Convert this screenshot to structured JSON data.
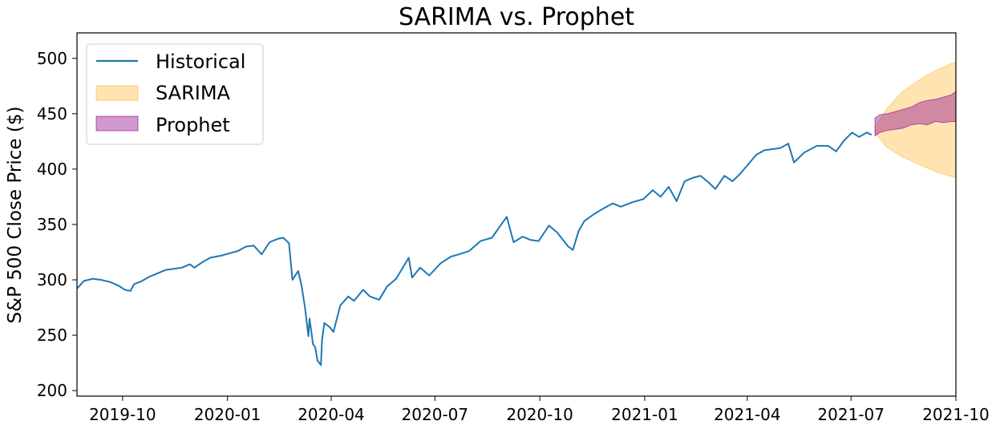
{
  "chart_data": {
    "type": "line",
    "title": "SARIMA vs. Prophet",
    "xlabel": "",
    "ylabel": "S&P 500 Close Price ($)",
    "xlim": [
      "2019-08-22",
      "2021-10-01"
    ],
    "ylim": [
      195,
      523
    ],
    "x_ticks": [
      "2019-10",
      "2020-01",
      "2020-04",
      "2020-07",
      "2020-10",
      "2021-01",
      "2021-04",
      "2021-07",
      "2021-10"
    ],
    "y_ticks": [
      200,
      250,
      300,
      350,
      400,
      450,
      500
    ],
    "grid": false,
    "legend": {
      "position": "top-left",
      "entries": [
        "Historical",
        "SARIMA",
        "Prophet"
      ]
    },
    "colors": {
      "historical": "#1f77b4",
      "sarima": "#ffa500",
      "prophet": "#8b008b"
    },
    "series": [
      {
        "name": "Historical",
        "type": "line",
        "x": [
          "2019-08-22",
          "2019-08-28",
          "2019-09-05",
          "2019-09-12",
          "2019-09-20",
          "2019-09-27",
          "2019-10-03",
          "2019-10-08",
          "2019-10-11",
          "2019-10-18",
          "2019-10-25",
          "2019-11-01",
          "2019-11-08",
          "2019-11-15",
          "2019-11-22",
          "2019-11-29",
          "2019-12-03",
          "2019-12-10",
          "2019-12-17",
          "2019-12-27",
          "2020-01-03",
          "2020-01-10",
          "2020-01-17",
          "2020-01-24",
          "2020-01-31",
          "2020-02-07",
          "2020-02-14",
          "2020-02-19",
          "2020-02-24",
          "2020-02-27",
          "2020-03-03",
          "2020-03-06",
          "2020-03-09",
          "2020-03-12",
          "2020-03-13",
          "2020-03-16",
          "2020-03-18",
          "2020-03-20",
          "2020-03-23",
          "2020-03-24",
          "2020-03-26",
          "2020-03-31",
          "2020-04-03",
          "2020-04-09",
          "2020-04-16",
          "2020-04-21",
          "2020-04-29",
          "2020-05-05",
          "2020-05-13",
          "2020-05-20",
          "2020-05-28",
          "2020-06-08",
          "2020-06-11",
          "2020-06-18",
          "2020-06-26",
          "2020-07-06",
          "2020-07-15",
          "2020-07-22",
          "2020-07-31",
          "2020-08-10",
          "2020-08-20",
          "2020-09-02",
          "2020-09-08",
          "2020-09-16",
          "2020-09-23",
          "2020-09-30",
          "2020-10-09",
          "2020-10-16",
          "2020-10-26",
          "2020-10-30",
          "2020-11-04",
          "2020-11-09",
          "2020-11-17",
          "2020-11-25",
          "2020-12-04",
          "2020-12-11",
          "2020-12-21",
          "2020-12-31",
          "2021-01-08",
          "2021-01-15",
          "2021-01-22",
          "2021-01-29",
          "2021-02-05",
          "2021-02-12",
          "2021-02-19",
          "2021-02-26",
          "2021-03-04",
          "2021-03-12",
          "2021-03-19",
          "2021-03-26",
          "2021-04-09",
          "2021-04-16",
          "2021-04-23",
          "2021-04-30",
          "2021-05-07",
          "2021-05-12",
          "2021-05-21",
          "2021-06-01",
          "2021-06-11",
          "2021-06-18",
          "2021-06-25",
          "2021-07-02",
          "2021-07-08",
          "2021-07-15",
          "2021-07-19"
        ],
        "values": [
          292,
          299,
          301,
          300,
          298,
          295,
          291,
          290,
          296,
          299,
          303,
          306,
          309,
          310,
          311,
          314,
          311,
          316,
          320,
          322,
          324,
          326,
          330,
          331,
          323,
          334,
          337,
          338,
          333,
          300,
          308,
          295,
          275,
          249,
          265,
          242,
          239,
          227,
          223,
          246,
          261,
          257,
          253,
          277,
          285,
          281,
          291,
          285,
          282,
          294,
          301,
          320,
          302,
          311,
          304,
          315,
          321,
          323,
          326,
          335,
          338,
          357,
          334,
          339,
          336,
          335,
          349,
          343,
          330,
          327,
          344,
          353,
          359,
          364,
          369,
          366,
          370,
          373,
          381,
          375,
          384,
          371,
          389,
          392,
          394,
          388,
          382,
          394,
          389,
          396,
          413,
          417,
          418,
          419,
          423,
          406,
          415,
          421,
          421,
          416,
          426,
          433,
          429,
          433,
          431
        ]
      },
      {
        "name": "SARIMA",
        "type": "band",
        "x": [
          "2021-07-22",
          "2021-08-01",
          "2021-08-15",
          "2021-09-01",
          "2021-09-15",
          "2021-10-01"
        ],
        "lower": [
          433,
          420,
          411,
          403,
          397,
          392
        ],
        "upper": [
          438,
          454,
          470,
          482,
          490,
          497
        ]
      },
      {
        "name": "Prophet",
        "type": "band",
        "x": [
          "2021-07-22",
          "2021-07-26",
          "2021-08-02",
          "2021-08-09",
          "2021-08-16",
          "2021-08-23",
          "2021-08-30",
          "2021-09-06",
          "2021-09-13",
          "2021-09-20",
          "2021-09-27",
          "2021-10-01"
        ],
        "lower": [
          430,
          433,
          435,
          436,
          437,
          440,
          441,
          440,
          443,
          442,
          443,
          443
        ],
        "upper": [
          446,
          449,
          450,
          452,
          454,
          456,
          460,
          462,
          463,
          465,
          467,
          470
        ]
      }
    ]
  }
}
